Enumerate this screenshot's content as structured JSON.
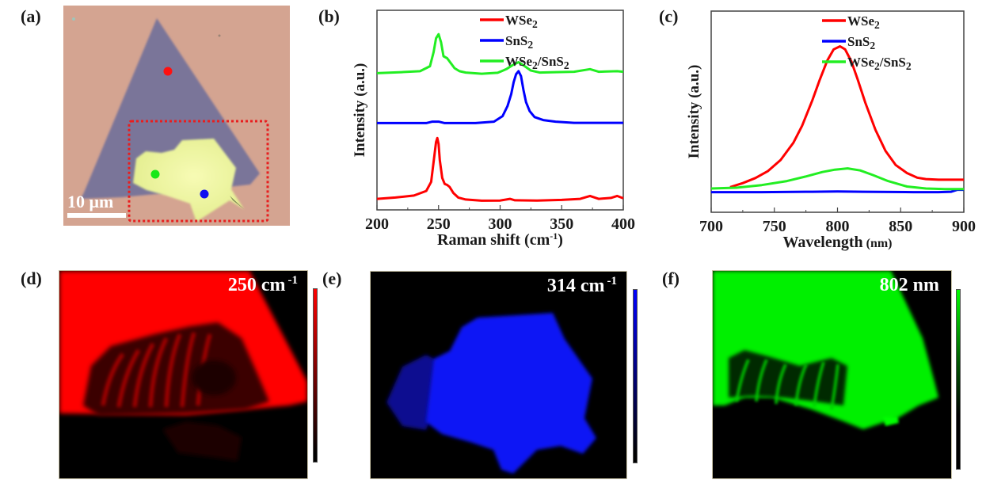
{
  "panels": {
    "a": {
      "label": "(a)",
      "scale_bar": "10 μm",
      "colors": {
        "substrate": "#d4a491",
        "triangle": "#7a7599",
        "flake": "#f2f7a8",
        "roi": "#e81e1e"
      },
      "markers": [
        {
          "name": "WSe2 point",
          "color": "#ff1010"
        },
        {
          "name": "heterostructure point",
          "color": "#18e818"
        },
        {
          "name": "SnS2 point",
          "color": "#1010f0"
        }
      ]
    },
    "d": {
      "label": "(d)",
      "title_value": "250 cm",
      "title_sup": "-1",
      "colormap": [
        "#000000",
        "#ff0000"
      ]
    },
    "e": {
      "label": "(e)",
      "title_value": "314 cm",
      "title_sup": "-1",
      "colormap": [
        "#000000",
        "#0000ff"
      ]
    },
    "f": {
      "label": "(f)",
      "title_value": "802 nm",
      "title_sup": "",
      "colormap": [
        "#000000",
        "#00ff00"
      ]
    }
  },
  "chart_data": [
    {
      "panel": "(b)",
      "type": "line",
      "title": "",
      "xlabel": "Raman shift (cm",
      "xlabel_sup": "-1",
      "xlabel_end": ")",
      "ylabel": "Intensity (a.u.)",
      "xlim": [
        200,
        400
      ],
      "ylim": [
        0,
        10
      ],
      "xticks": [
        200,
        250,
        300,
        350,
        400
      ],
      "minor_xticks": [
        225,
        275,
        325,
        375
      ],
      "show_ytick_labels": false,
      "grid": false,
      "legend": {
        "position": "top-right",
        "entries": [
          "WSe2",
          "SnS2",
          "WSe2/SnS2"
        ]
      },
      "series": [
        {
          "name": "WSe2",
          "color": "#ff0000",
          "x": [
            200,
            215,
            230,
            240,
            244,
            246,
            248,
            249,
            250,
            251,
            253,
            255,
            257,
            259,
            262,
            266,
            272,
            285,
            300,
            308,
            312,
            330,
            350,
            365,
            373,
            380,
            390,
            395,
            400
          ],
          "y": [
            0.55,
            0.62,
            0.72,
            0.95,
            1.4,
            2.4,
            3.4,
            3.6,
            3.3,
            2.5,
            1.6,
            1.3,
            1.25,
            1.15,
            0.85,
            0.62,
            0.52,
            0.46,
            0.47,
            0.55,
            0.48,
            0.47,
            0.5,
            0.55,
            0.7,
            0.55,
            0.6,
            0.7,
            0.58
          ]
        },
        {
          "name": "SnS2",
          "color": "#0000ff",
          "x": [
            200,
            240,
            245,
            250,
            255,
            280,
            295,
            302,
            306,
            309,
            311,
            313,
            315,
            317,
            319,
            321,
            324,
            328,
            335,
            345,
            360,
            400
          ],
          "y": [
            4.35,
            4.35,
            4.42,
            4.42,
            4.35,
            4.35,
            4.42,
            4.7,
            5.2,
            5.8,
            6.4,
            6.8,
            6.95,
            6.7,
            6.0,
            5.4,
            4.95,
            4.65,
            4.5,
            4.42,
            4.36,
            4.36
          ]
        },
        {
          "name": "WSe2/SnS2",
          "color": "#22ee22",
          "x": [
            200,
            220,
            235,
            243,
            246,
            248,
            250,
            252,
            254,
            257,
            260,
            263,
            267,
            272,
            285,
            298,
            305,
            310,
            315,
            320,
            325,
            332,
            345,
            360,
            373,
            380,
            395,
            400
          ],
          "y": [
            6.85,
            6.9,
            6.95,
            7.2,
            7.9,
            8.6,
            8.8,
            8.4,
            7.7,
            7.6,
            7.35,
            7.1,
            6.95,
            6.88,
            6.82,
            6.87,
            7.05,
            7.25,
            7.4,
            7.2,
            6.98,
            6.88,
            6.9,
            6.92,
            7.05,
            6.92,
            6.95,
            6.92
          ]
        }
      ]
    },
    {
      "panel": "(c)",
      "type": "line",
      "title": "",
      "xlabel": "Wavelength",
      "xlabel_unit": "(nm)",
      "ylabel": "Intensity (a.u.)",
      "xlim": [
        700,
        900
      ],
      "ylim": [
        0,
        10
      ],
      "xticks": [
        700,
        750,
        800,
        850,
        900
      ],
      "minor_xticks": [
        725,
        775,
        825,
        875
      ],
      "show_ytick_labels": false,
      "grid": false,
      "legend": {
        "position": "top-right",
        "entries": [
          "WSe2",
          "SnS2",
          "WSe2/SnS2"
        ]
      },
      "series": [
        {
          "name": "WSe2",
          "color": "#ff0000",
          "x": [
            715,
            725,
            735,
            745,
            755,
            765,
            772,
            780,
            786,
            792,
            797,
            802,
            806,
            811,
            816,
            822,
            830,
            838,
            846,
            855,
            863,
            870,
            880,
            890,
            900
          ],
          "y": [
            1.25,
            1.45,
            1.7,
            2.05,
            2.6,
            3.45,
            4.3,
            5.55,
            6.6,
            7.55,
            8.1,
            8.25,
            8.1,
            7.5,
            6.6,
            5.45,
            4.1,
            3.05,
            2.35,
            1.95,
            1.72,
            1.65,
            1.62,
            1.62,
            1.62
          ]
        },
        {
          "name": "SnS2",
          "color": "#0000ff",
          "x": [
            700,
            740,
            780,
            800,
            820,
            860,
            880,
            890,
            895,
            900
          ],
          "y": [
            1.0,
            1.0,
            1.02,
            1.03,
            1.02,
            1.0,
            1.0,
            1.02,
            1.12,
            1.12
          ]
        },
        {
          "name": "WSe2/SnS2",
          "color": "#22ee22",
          "x": [
            700,
            720,
            740,
            760,
            775,
            788,
            798,
            808,
            818,
            828,
            840,
            855,
            870,
            885,
            900
          ],
          "y": [
            1.18,
            1.22,
            1.35,
            1.55,
            1.78,
            2.0,
            2.12,
            2.18,
            2.08,
            1.85,
            1.55,
            1.28,
            1.18,
            1.15,
            1.15
          ]
        }
      ]
    }
  ]
}
